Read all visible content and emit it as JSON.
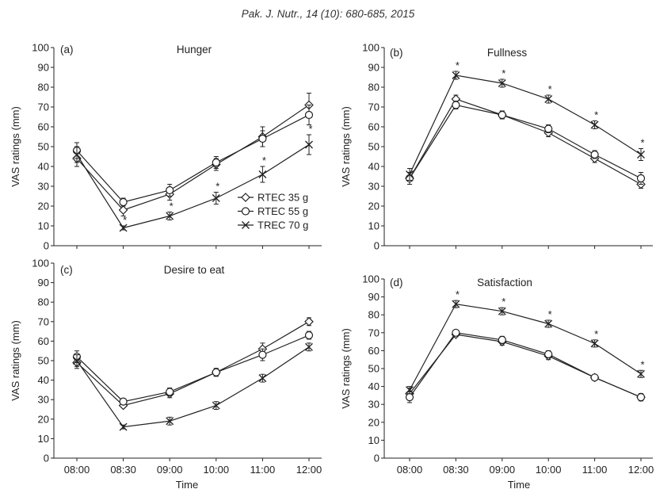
{
  "header": {
    "citation": "Pak. J. Nutr., 14 (10): 680-685, 2015"
  },
  "figure": {
    "ink_color": "#222222",
    "marker_fill": "#ffffff"
  },
  "chart_data": [
    {
      "type": "line",
      "panel_label": "(a)",
      "title": "Hunger",
      "ylabel": "VAS ratings (mm)",
      "categories": [
        "08:00",
        "08:30",
        "09:00",
        "10:00",
        "11:00",
        "12:00"
      ],
      "ylim": [
        0,
        100
      ],
      "yticks": [
        0,
        10,
        20,
        30,
        40,
        50,
        60,
        70,
        80,
        90,
        100
      ],
      "legend": "lower-right",
      "series": [
        {
          "name": "RTEC 35 g",
          "marker": "diamond",
          "values": [
            44,
            18,
            26,
            41,
            55,
            71
          ],
          "error": [
            4,
            3,
            3,
            3,
            5,
            6
          ]
        },
        {
          "name": "RTEC 55 g",
          "marker": "circle",
          "values": [
            48,
            22,
            28,
            42,
            54,
            66
          ],
          "error": [
            4,
            2,
            3,
            3,
            4,
            5
          ]
        },
        {
          "name": "TREC 70 g",
          "marker": "x",
          "values": [
            46,
            9,
            15,
            24,
            36,
            51
          ],
          "error": [
            4,
            1,
            2,
            3,
            4,
            5
          ]
        }
      ],
      "significance": {
        "series": "TREC 70 g",
        "marker": "*",
        "flags": [
          false,
          true,
          true,
          true,
          true,
          true
        ]
      }
    },
    {
      "type": "line",
      "panel_label": "(b)",
      "title": "Fullness",
      "ylabel": "VAS ratings (mm)",
      "categories": [
        "08:00",
        "08:30",
        "09:00",
        "10:00",
        "11:00",
        "12:00"
      ],
      "ylim": [
        0,
        100
      ],
      "yticks": [
        0,
        10,
        20,
        30,
        40,
        50,
        60,
        70,
        80,
        90,
        100
      ],
      "series": [
        {
          "name": "RTEC 35 g",
          "marker": "diamond",
          "values": [
            34,
            74,
            66,
            57,
            44,
            31
          ],
          "error": [
            3,
            2,
            2,
            2,
            2,
            2
          ]
        },
        {
          "name": "RTEC 55 g",
          "marker": "circle",
          "values": [
            34,
            71,
            66,
            59,
            46,
            34
          ],
          "error": [
            3,
            2,
            2,
            2,
            2,
            3
          ]
        },
        {
          "name": "TREC 70 g",
          "marker": "x",
          "values": [
            36,
            86,
            82,
            74,
            61,
            46
          ],
          "error": [
            3,
            2,
            2,
            2,
            2,
            3
          ]
        }
      ],
      "significance": {
        "series": "TREC 70 g",
        "marker": "*",
        "flags": [
          false,
          true,
          true,
          true,
          true,
          true
        ]
      }
    },
    {
      "type": "line",
      "panel_label": "(c)",
      "title": "Desire to eat",
      "xlabel": "Time",
      "ylabel": "VAS ratings (mm)",
      "categories": [
        "08:00",
        "08:30",
        "09:00",
        "10:00",
        "11:00",
        "12:00"
      ],
      "ylim": [
        0,
        100
      ],
      "yticks": [
        0,
        10,
        20,
        30,
        40,
        50,
        60,
        70,
        80,
        90,
        100
      ],
      "series": [
        {
          "name": "RTEC 35 g",
          "marker": "diamond",
          "values": [
            49,
            27,
            33,
            44,
            56,
            70
          ],
          "error": [
            3,
            1,
            2,
            2,
            3,
            2
          ]
        },
        {
          "name": "RTEC 55 g",
          "marker": "circle",
          "values": [
            52,
            29,
            34,
            44,
            53,
            63
          ],
          "error": [
            3,
            1,
            2,
            2,
            3,
            2
          ]
        },
        {
          "name": "TREC 70 g",
          "marker": "x",
          "values": [
            50,
            16,
            19,
            27,
            41,
            57
          ],
          "error": [
            3,
            1,
            2,
            2,
            2,
            2
          ]
        }
      ]
    },
    {
      "type": "line",
      "panel_label": "(d)",
      "title": "Satisfaction",
      "xlabel": "Time",
      "ylabel": "VAS ratings (mm)",
      "categories": [
        "08:00",
        "08:30",
        "09:00",
        "10:00",
        "11:00",
        "12:00"
      ],
      "ylim": [
        0,
        100
      ],
      "yticks": [
        0,
        10,
        20,
        30,
        40,
        50,
        60,
        70,
        80,
        90,
        100
      ],
      "series": [
        {
          "name": "RTEC 35 g",
          "marker": "diamond",
          "values": [
            36,
            69,
            65,
            57,
            45,
            34
          ],
          "error": [
            3,
            1,
            2,
            2,
            1,
            2
          ]
        },
        {
          "name": "RTEC 55 g",
          "marker": "circle",
          "values": [
            34,
            70,
            66,
            58,
            45,
            34
          ],
          "error": [
            3,
            1,
            2,
            2,
            1,
            2
          ]
        },
        {
          "name": "TREC 70 g",
          "marker": "x",
          "values": [
            38,
            86,
            82,
            75,
            64,
            47
          ],
          "error": [
            2,
            2,
            2,
            2,
            2,
            2
          ]
        }
      ],
      "significance": {
        "series": "TREC 70 g",
        "marker": "*",
        "flags": [
          false,
          true,
          true,
          true,
          true,
          true
        ]
      }
    }
  ]
}
